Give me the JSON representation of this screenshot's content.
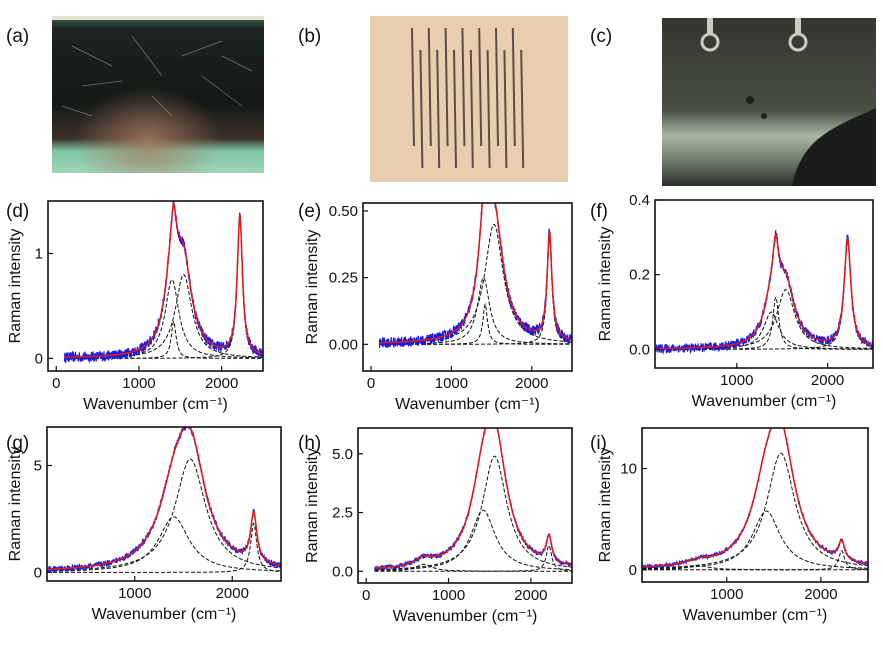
{
  "panels": {
    "photos": [
      {
        "label": "(a)",
        "background": "#1a1e1c",
        "accent": "#7fc6a4"
      },
      {
        "label": "(b)",
        "background": "#e4c9a6",
        "accent": "#5a4e44"
      },
      {
        "label": "(c)",
        "background": "#2c302a",
        "accent": "#b9c7b3"
      }
    ],
    "plot_labels": [
      "(d)",
      "(e)",
      "(f)",
      "(g)",
      "(h)",
      "(i)"
    ]
  },
  "colors": {
    "measured": "#1a1ae6",
    "fit": "#e01919",
    "components": "#111111"
  },
  "chart_data": [
    {
      "type": "line",
      "xlabel": "Wavenumber (cm⁻¹)",
      "ylabel": "Raman intensity",
      "xlim": [
        -100,
        2500
      ],
      "ylim": [
        -0.12,
        1.5
      ],
      "xticks": [
        0,
        1000,
        2000
      ],
      "xticklabels": [
        "0",
        "1000",
        "2000"
      ],
      "yticks": [
        0,
        1
      ],
      "yticklabels": [
        "0",
        "1"
      ],
      "peaks": [
        {
          "center": 1400,
          "height": 0.75,
          "width": 100
        },
        {
          "center": 1540,
          "height": 0.8,
          "width": 120
        },
        {
          "center": 1420,
          "height": 0.35,
          "width": 35
        },
        {
          "center": 2220,
          "height": 1.33,
          "width": 38
        }
      ],
      "x_data_start": 100,
      "noise": 0.05
    },
    {
      "type": "line",
      "xlabel": "Wavenumber (cm⁻¹)",
      "ylabel": "Raman intensity",
      "xlim": [
        -100,
        2500
      ],
      "ylim": [
        -0.1,
        0.53
      ],
      "xticks": [
        0,
        1000,
        2000
      ],
      "xticklabels": [
        "0",
        "1000",
        "2000"
      ],
      "yticks": [
        0,
        0.25,
        0.5
      ],
      "yticklabels": [
        "0.00",
        "0.25",
        "0.50"
      ],
      "peaks": [
        {
          "center": 1400,
          "height": 0.25,
          "width": 90
        },
        {
          "center": 1530,
          "height": 0.45,
          "width": 140
        },
        {
          "center": 1420,
          "height": 0.15,
          "width": 35
        },
        {
          "center": 2220,
          "height": 0.4,
          "width": 36
        }
      ],
      "x_data_start": 100,
      "noise": 0.02
    },
    {
      "type": "line",
      "xlabel": "Wavenumber (cm⁻¹)",
      "ylabel": "Raman intensity",
      "xlim": [
        100,
        2500
      ],
      "ylim": [
        -0.05,
        0.4
      ],
      "xticks": [
        1000,
        2000
      ],
      "xticklabels": [
        "1000",
        "2000"
      ],
      "yticks": [
        0,
        0.2,
        0.4
      ],
      "yticklabels": [
        "0.0",
        "0.2",
        "0.4"
      ],
      "peaks": [
        {
          "center": 1380,
          "height": 0.1,
          "width": 100
        },
        {
          "center": 1540,
          "height": 0.16,
          "width": 120
        },
        {
          "center": 1430,
          "height": 0.14,
          "width": 40
        },
        {
          "center": 2220,
          "height": 0.29,
          "width": 45
        }
      ],
      "x_data_start": 100,
      "noise": 0.012
    },
    {
      "type": "line",
      "xlabel": "Wavenumber (cm⁻¹)",
      "ylabel": "Raman intensity",
      "xlim": [
        100,
        2500
      ],
      "ylim": [
        -0.4,
        6.8
      ],
      "xticks": [
        1000,
        2000
      ],
      "xticklabels": [
        "1000",
        "2000"
      ],
      "yticks": [
        0,
        5
      ],
      "yticklabels": [
        "0",
        "5"
      ],
      "peaks": [
        {
          "center": 1400,
          "height": 2.6,
          "width": 190
        },
        {
          "center": 1570,
          "height": 5.3,
          "width": 190
        },
        {
          "center": 2220,
          "height": 2.3,
          "width": 38
        }
      ],
      "x_data_start": 100,
      "noise": 0.14
    },
    {
      "type": "line",
      "xlabel": "Wavenumber (cm⁻¹)",
      "ylabel": "Raman intensity",
      "xlim": [
        -100,
        2500
      ],
      "ylim": [
        -0.5,
        6.1
      ],
      "xticks": [
        0,
        1000,
        2000
      ],
      "xticklabels": [
        "0",
        "1000",
        "2000"
      ],
      "yticks": [
        0,
        2.5,
        5
      ],
      "yticklabels": [
        "0.0",
        "2.5",
        "5.0"
      ],
      "peaks": [
        {
          "center": 700,
          "height": 0.3,
          "width": 120
        },
        {
          "center": 1420,
          "height": 2.6,
          "width": 180
        },
        {
          "center": 1560,
          "height": 4.9,
          "width": 180
        },
        {
          "center": 2220,
          "height": 1.1,
          "width": 40
        }
      ],
      "x_data_start": 100,
      "noise": 0.1
    },
    {
      "type": "line",
      "xlabel": "Wavenumber (cm⁻¹)",
      "ylabel": "Raman intensity",
      "xlim": [
        100,
        2500
      ],
      "ylim": [
        -1.2,
        14
      ],
      "xticks": [
        1000,
        2000
      ],
      "xticklabels": [
        "1000",
        "2000"
      ],
      "yticks": [
        0,
        10
      ],
      "yticklabels": [
        "0",
        "10"
      ],
      "peaks": [
        {
          "center": 700,
          "height": 0.4,
          "width": 150
        },
        {
          "center": 1420,
          "height": 5.8,
          "width": 180
        },
        {
          "center": 1575,
          "height": 11.5,
          "width": 180
        },
        {
          "center": 2220,
          "height": 1.9,
          "width": 38
        }
      ],
      "x_data_start": 100,
      "noise": 0.18
    }
  ]
}
